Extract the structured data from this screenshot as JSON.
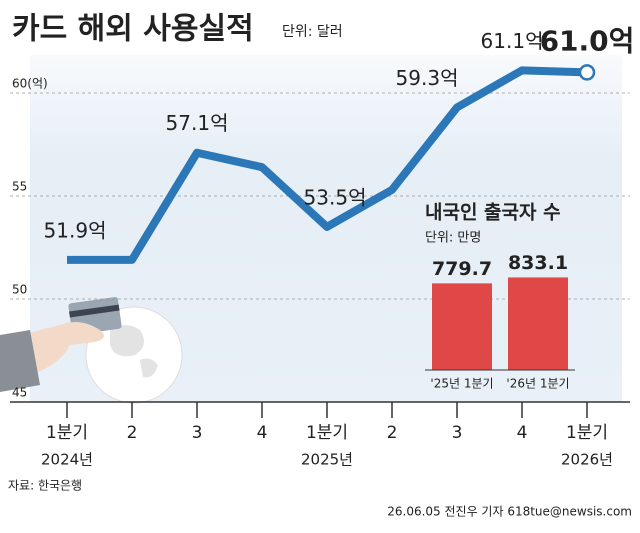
{
  "chart_data": [
    {
      "type": "line",
      "title": "카드 해외 사용실적",
      "subtitle": "단위: 달러",
      "categories": [
        "1분기",
        "2",
        "3",
        "4",
        "1분기",
        "2",
        "3",
        "4",
        "1분기"
      ],
      "years": [
        "2024년",
        null,
        null,
        null,
        "2025년",
        null,
        null,
        null,
        "2026년"
      ],
      "values": [
        51.9,
        51.9,
        57.1,
        56.4,
        53.5,
        55.3,
        59.3,
        61.1,
        61.0
      ],
      "value_labels": [
        "51.9억",
        null,
        "57.1억",
        null,
        "53.5억",
        null,
        "59.3억",
        "61.1억",
        "61.0억"
      ],
      "color": "#2b77b8",
      "ylim": [
        45,
        62.5
      ],
      "yticks": [
        {
          "value": 60,
          "label": "60(억)"
        },
        55,
        50,
        45
      ],
      "grid": true,
      "source": "자료: 한국은행",
      "credit": "26.06.05 전진우 기자 618tue@newsis.com"
    },
    {
      "type": "bar",
      "title": "내국인 출국자 수",
      "subtitle": "단위: 만명",
      "categories": [
        "'25년 1분기",
        "'26년 1분기"
      ],
      "values": [
        779.7,
        833.1
      ],
      "color": "#e04848",
      "ylim": [
        0,
        900
      ]
    }
  ]
}
